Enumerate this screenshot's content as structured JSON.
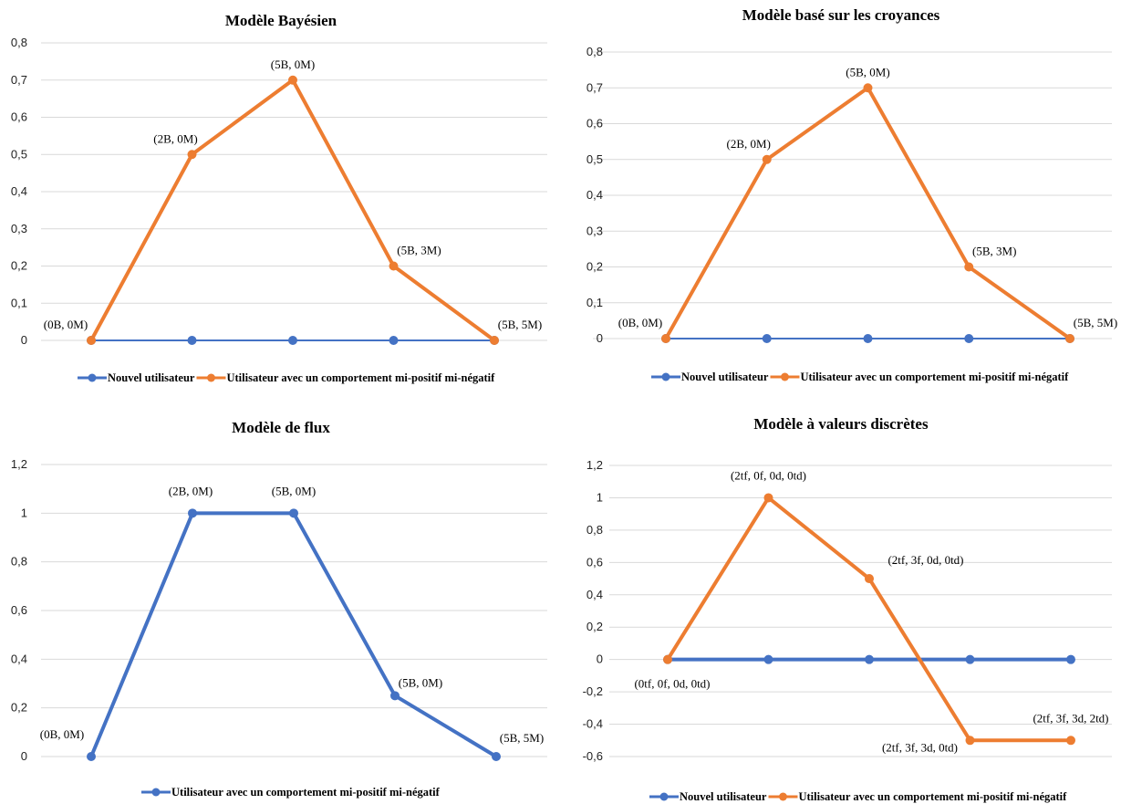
{
  "chart_data": [
    {
      "type": "line",
      "title": "Modèle Bayésien",
      "xlabel": "",
      "ylabel": "",
      "ylim": [
        0,
        0.8
      ],
      "yticks": [
        "0",
        "0,1",
        "0,2",
        "0,3",
        "0,4",
        "0,5",
        "0,6",
        "0,7",
        "0,8"
      ],
      "grid": true,
      "legend": "bottom",
      "series": [
        {
          "name": "Nouvel utilisateur",
          "color": "#4472C4",
          "values": [
            0,
            0,
            0,
            0,
            0
          ]
        },
        {
          "name": "Utilisateur avec un comportement mi-positif mi-négatif",
          "color": "#ED7D31",
          "values": [
            0,
            0.5,
            0.7,
            0.2,
            0
          ],
          "point_labels": [
            "(0B, 0M)",
            "(2B, 0M)",
            "(5B, 0M)",
            "(5B, 3M)",
            "(5B, 5M)"
          ]
        }
      ]
    },
    {
      "type": "line",
      "title": "Modèle basé sur les croyances",
      "xlabel": "",
      "ylabel": "",
      "ylim": [
        0,
        0.8
      ],
      "yticks": [
        "0",
        "0,1",
        "0,2",
        "0,3",
        "0,4",
        "0,5",
        "0,6",
        "0,7",
        "0,8"
      ],
      "grid": true,
      "legend": "bottom",
      "series": [
        {
          "name": "Nouvel utilisateur",
          "color": "#4472C4",
          "values": [
            0,
            0,
            0,
            0,
            0
          ]
        },
        {
          "name": "Utilisateur avec un comportement mi-positif mi-négatif",
          "color": "#ED7D31",
          "values": [
            0,
            0.5,
            0.7,
            0.2,
            0
          ],
          "point_labels": [
            "(0B, 0M)",
            "(2B, 0M)",
            "(5B, 0M)",
            "(5B, 3M)",
            "(5B, 5M)"
          ]
        }
      ]
    },
    {
      "type": "line",
      "title": "Modèle de flux",
      "xlabel": "",
      "ylabel": "",
      "ylim": [
        0,
        1.2
      ],
      "yticks": [
        "0",
        "0,2",
        "0,4",
        "0,6",
        "0,8",
        "1",
        "1,2"
      ],
      "grid": true,
      "legend": "bottom",
      "series": [
        {
          "name": "Utilisateur avec un comportement mi-positif mi-négatif",
          "color": "#4472C4",
          "values": [
            0,
            1,
            1,
            0.25,
            0
          ],
          "point_labels": [
            "(0B, 0M)",
            "(2B, 0M)",
            "(5B, 0M)",
            "(5B, 0M)",
            "(5B, 5M)"
          ]
        }
      ]
    },
    {
      "type": "line",
      "title": "Modèle à valeurs discrètes",
      "xlabel": "",
      "ylabel": "",
      "ylim": [
        -0.6,
        1.2
      ],
      "yticks": [
        "-0,6",
        "-0,4",
        "-0,2",
        "0",
        "0,2",
        "0,4",
        "0,6",
        "0,8",
        "1",
        "1,2"
      ],
      "grid": true,
      "legend": "bottom",
      "series": [
        {
          "name": "Nouvel utilisateur",
          "color": "#4472C4",
          "values": [
            0,
            0,
            0,
            0,
            0
          ]
        },
        {
          "name": "Utilisateur avec un comportement mi-positif mi-négatif",
          "color": "#ED7D31",
          "values": [
            0,
            1,
            0.5,
            -0.5,
            -0.5
          ],
          "point_labels": [
            "(0tf, 0f, 0d, 0td)",
            "(2tf, 0f, 0d, 0td)",
            "(2tf, 3f, 0d, 0td)",
            "(2tf, 3f, 3d, 0td)",
            "(2tf, 3f, 3d, 2td)"
          ]
        }
      ]
    }
  ]
}
